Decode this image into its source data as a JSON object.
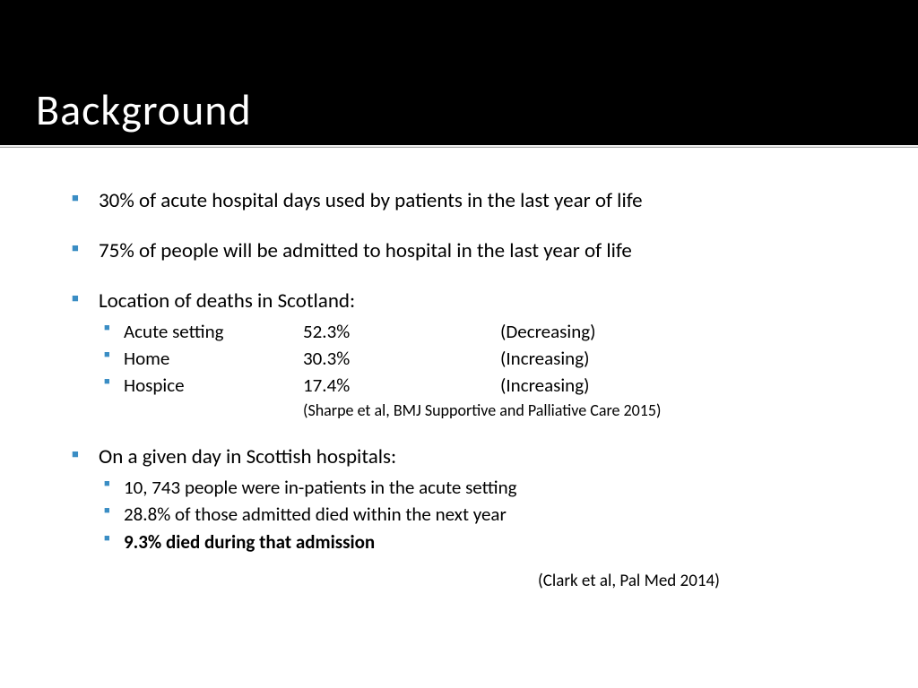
{
  "slide": {
    "title": "Background",
    "header_bg": "#000000",
    "title_color": "#ffffff",
    "title_fontsize": 48,
    "bullet_color": "#3a8dc4",
    "body_bg": "#ffffff",
    "body_color": "#000000",
    "body_fontsize": 23,
    "sub_fontsize": 21,
    "citation_fontsize": 18
  },
  "bullets": {
    "b1": "30% of acute hospital days used by patients in the last year of life",
    "b2": "75% of people will be admitted to hospital in the last year of life",
    "b3": "Location of deaths in Scotland:",
    "b4": "On a given day in Scottish hospitals:"
  },
  "locations": {
    "row0": {
      "name": "Acute setting",
      "pct": "52.3%",
      "trend": "(Decreasing)"
    },
    "row1": {
      "name": "Home",
      "pct": "30.3%",
      "trend": "(Increasing)"
    },
    "row2": {
      "name": "Hospice",
      "pct": "17.4%",
      "trend": "(Increasing)"
    }
  },
  "citation1": "(Sharpe  et al, BMJ Supportive and Palliative  Care 2015)",
  "hospital_day": {
    "s0": "10, 743 people were in-patients in the acute setting",
    "s1": "28.8% of those admitted died within the next year",
    "s2": "9.3% died during that admission"
  },
  "citation2": "(Clark et al, Pal Med  2014)"
}
